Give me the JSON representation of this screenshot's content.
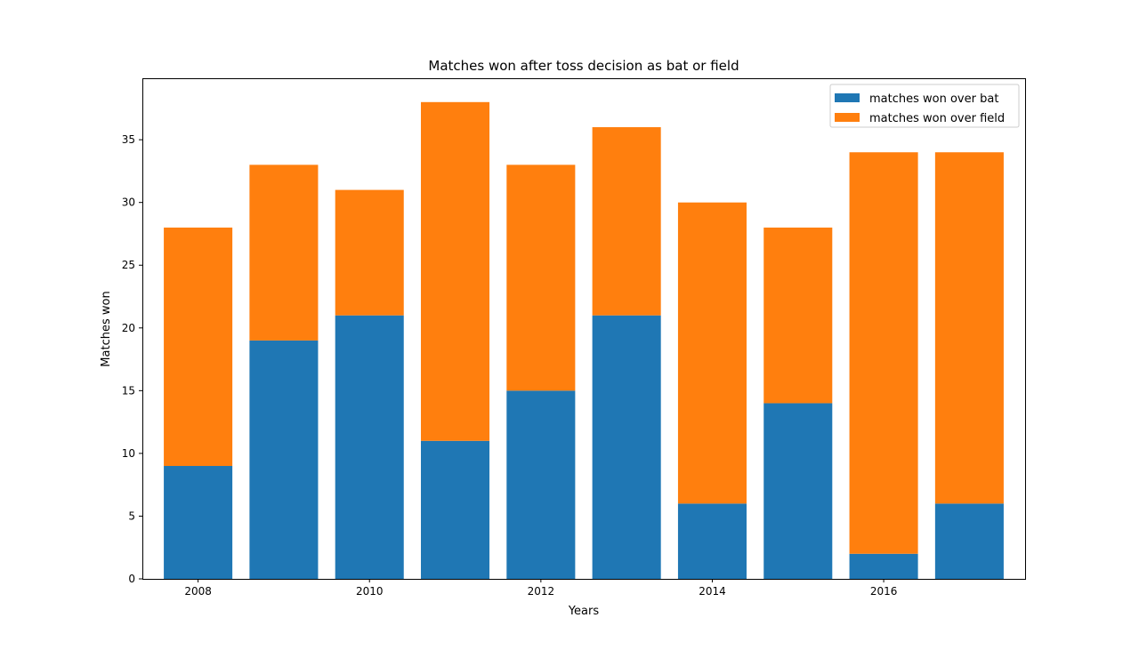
{
  "chart_data": {
    "type": "bar",
    "stacked": true,
    "title": "Matches won after toss decision as bat or field",
    "xlabel": "Years",
    "ylabel": "Matches won",
    "x": [
      2008,
      2009,
      2010,
      2011,
      2012,
      2013,
      2014,
      2015,
      2016,
      2017
    ],
    "xticks": [
      2008,
      2010,
      2012,
      2014,
      2016
    ],
    "yticks": [
      0,
      5,
      10,
      15,
      20,
      25,
      30,
      35
    ],
    "xlim": [
      2007.35,
      2017.65
    ],
    "ylim": [
      0,
      39.9
    ],
    "grid": false,
    "legend_position": "top-right",
    "series": [
      {
        "name": "matches won over bat",
        "color": "#1f77b4",
        "values": [
          9,
          19,
          21,
          11,
          15,
          21,
          6,
          14,
          2,
          6
        ]
      },
      {
        "name": "matches won over field",
        "color": "#ff7f0e",
        "values": [
          19,
          14,
          10,
          27,
          18,
          15,
          24,
          14,
          32,
          28
        ]
      }
    ]
  }
}
